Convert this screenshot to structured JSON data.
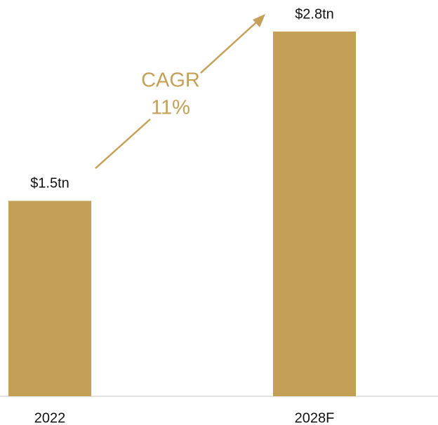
{
  "chart_data": {
    "type": "bar",
    "categories": [
      "2022",
      "2028F"
    ],
    "values": [
      1.5,
      2.8
    ],
    "value_labels": [
      "$1.5tn",
      "$2.8tn"
    ],
    "color": "#c49f56",
    "annotation": [
      "CAGR",
      "11%"
    ]
  }
}
